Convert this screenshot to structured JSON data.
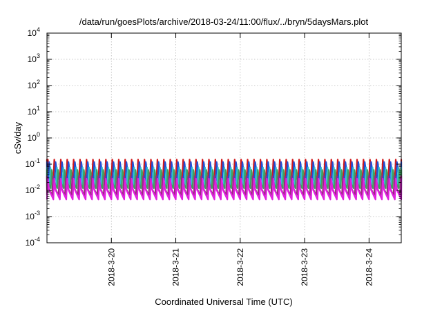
{
  "chart_data": {
    "type": "line",
    "title": "/data/run/goesPlots/archive/2018-03-24/11:00/flux/../bryn/5daysMars.plot",
    "xlabel": "Coordinated Universal Time (UTC)",
    "ylabel": "cSv/day",
    "yscale": "log",
    "ylim": [
      0.0001,
      10000
    ],
    "xlim": [
      0,
      5.5
    ],
    "grid": true,
    "y_ticks": [
      {
        "base": "10",
        "exp": "-4"
      },
      {
        "base": "10",
        "exp": "-3"
      },
      {
        "base": "10",
        "exp": "-2"
      },
      {
        "base": "10",
        "exp": "-1"
      },
      {
        "base": "10",
        "exp": "0"
      },
      {
        "base": "10",
        "exp": "1"
      },
      {
        "base": "10",
        "exp": "2"
      },
      {
        "base": "10",
        "exp": "3"
      },
      {
        "base": "10",
        "exp": "4"
      }
    ],
    "x_ticks": [
      {
        "label": "2018-3-20",
        "x": 1
      },
      {
        "label": "2018-3-21",
        "x": 2
      },
      {
        "label": "2018-3-22",
        "x": 3
      },
      {
        "label": "2018-3-23",
        "x": 4
      },
      {
        "label": "2018-3-24",
        "x": 5
      }
    ],
    "cycles_per_day": 10,
    "series": [
      {
        "color": "#d0181b",
        "peak": 0.15,
        "trough": 0.028
      },
      {
        "color": "#2050d8",
        "peak": 0.12,
        "trough": 0.024
      },
      {
        "color": "#30c0d0",
        "peak": 0.075,
        "trough": 0.015
      },
      {
        "color": "#40a060",
        "peak": 0.06,
        "trough": 0.012
      },
      {
        "color": "#9a2a80",
        "peak": 0.035,
        "trough": 0.0065
      },
      {
        "color": "#e020e0",
        "peak": 0.028,
        "trough": 0.0045
      }
    ]
  }
}
